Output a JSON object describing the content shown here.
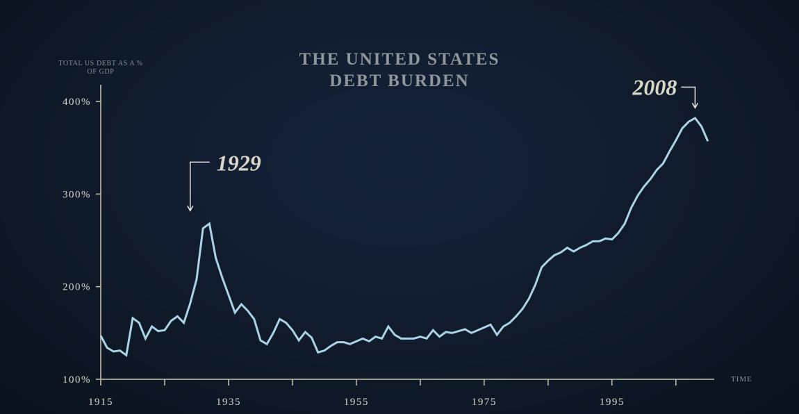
{
  "chart_data": {
    "type": "line",
    "title": "THE UNITED STATES DEBT BURDEN",
    "y_label": "TOTAL US DEBT AS A % OF GDP",
    "x_label": "TIME",
    "x": [
      1915,
      1916,
      1917,
      1918,
      1919,
      1920,
      1921,
      1922,
      1923,
      1924,
      1925,
      1926,
      1927,
      1928,
      1929,
      1930,
      1931,
      1932,
      1933,
      1934,
      1935,
      1936,
      1937,
      1938,
      1939,
      1940,
      1941,
      1942,
      1943,
      1944,
      1945,
      1946,
      1947,
      1948,
      1949,
      1950,
      1951,
      1952,
      1953,
      1954,
      1955,
      1956,
      1957,
      1958,
      1959,
      1960,
      1961,
      1962,
      1963,
      1964,
      1965,
      1966,
      1967,
      1968,
      1969,
      1970,
      1971,
      1972,
      1973,
      1974,
      1975,
      1976,
      1977,
      1978,
      1979,
      1980,
      1981,
      1982,
      1983,
      1984,
      1985,
      1986,
      1987,
      1988,
      1989,
      1990,
      1991,
      1992,
      1993,
      1994,
      1995,
      1996,
      1997,
      1998,
      1999,
      2000,
      2001,
      2002,
      2003,
      2004,
      2005,
      2006,
      2007,
      2008,
      2009,
      2010
    ],
    "values": [
      147,
      134,
      130,
      131,
      126,
      166,
      161,
      144,
      157,
      152,
      153,
      163,
      168,
      161,
      182,
      208,
      263,
      268,
      231,
      210,
      191,
      172,
      181,
      174,
      165,
      142,
      138,
      150,
      165,
      161,
      153,
      142,
      151,
      145,
      129,
      131,
      136,
      140,
      140,
      138,
      141,
      144,
      141,
      146,
      144,
      157,
      148,
      144,
      144,
      144,
      146,
      144,
      153,
      146,
      151,
      150,
      152,
      154,
      150,
      153,
      156,
      159,
      148,
      157,
      161,
      168,
      176,
      187,
      202,
      221,
      228,
      234,
      237,
      242,
      238,
      242,
      245,
      249,
      249,
      252,
      251,
      258,
      268,
      285,
      298,
      308,
      316,
      326,
      333,
      346,
      358,
      371,
      378,
      382,
      373,
      357
    ],
    "color": "#aad3e3",
    "xlim": [
      1915,
      2011
    ],
    "ylim": [
      100,
      418
    ],
    "xticks": [
      1915,
      1935,
      1955,
      1975,
      1995
    ],
    "xminor_ticks": [
      1925,
      1945,
      1965,
      1985,
      2005
    ],
    "yticks": [
      {
        "value": 100,
        "label": "100%"
      },
      {
        "value": 200,
        "label": "200%"
      },
      {
        "value": 300,
        "label": "300%"
      },
      {
        "value": 400,
        "label": "400%"
      }
    ],
    "annotations": [
      {
        "text": "1929",
        "x": 1929,
        "y": 282
      },
      {
        "text": "2008",
        "x": 2008,
        "y": 393
      }
    ]
  }
}
